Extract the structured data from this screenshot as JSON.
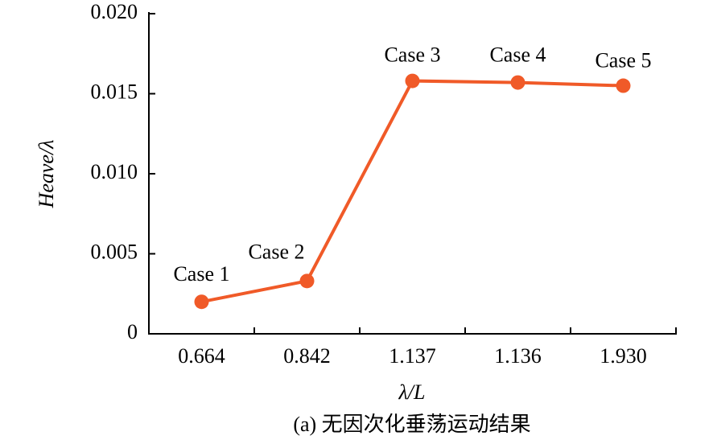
{
  "chart_data": {
    "type": "line",
    "x_label": "λ/L",
    "y_label": "Heave/λ",
    "caption": "(a) 无因次化垂荡运动结果",
    "categories": [
      "0.664",
      "0.842",
      "1.137",
      "1.136",
      "1.930"
    ],
    "values": [
      0.002,
      0.0033,
      0.0158,
      0.0157,
      0.0155
    ],
    "point_labels": [
      "Case 1",
      "Case 2",
      "Case 3",
      "Case 4",
      "Case 5"
    ],
    "color": "#f05a28",
    "ylim": [
      0,
      0.02
    ],
    "yticks": [
      0,
      0.005,
      {
        "value": 0.01,
        "label": "0.010"
      },
      {
        "value": 0.015,
        "label": "0.015"
      },
      {
        "value": 0.02,
        "label": "0.020"
      }
    ],
    "grid": false
  }
}
